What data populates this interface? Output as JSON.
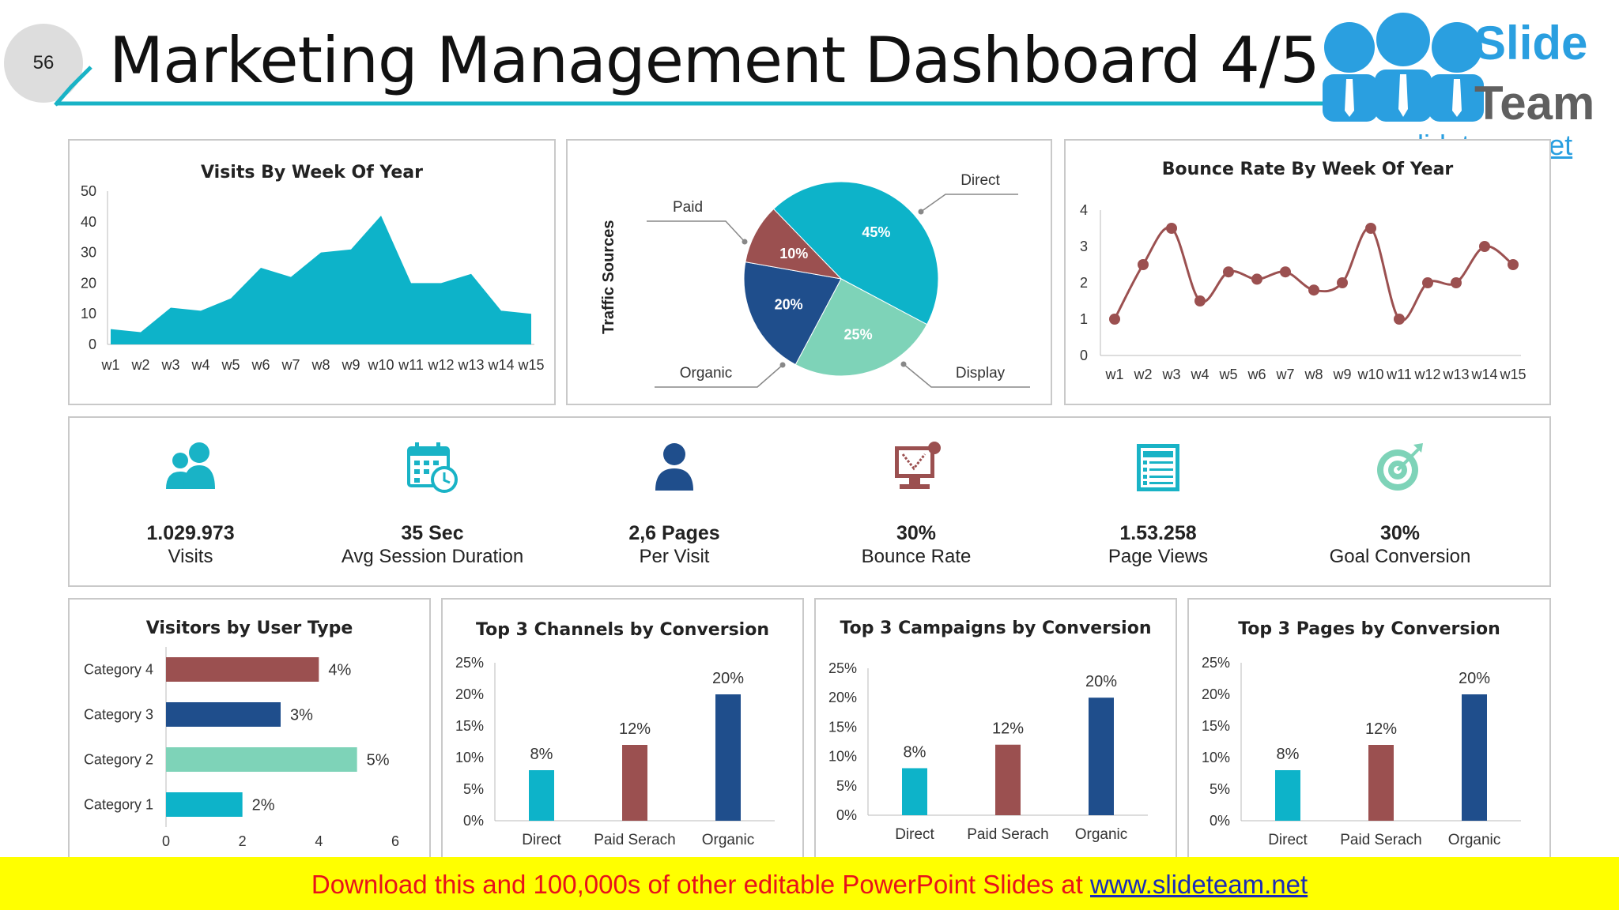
{
  "slide": {
    "number": "56",
    "title": "Marketing Management Dashboard 4/5"
  },
  "logo": {
    "line1": "Slide",
    "line2": "Team",
    "url": "www.slideteam.net"
  },
  "colors": {
    "teal": "#0db3c9",
    "maroon": "#9b5050",
    "navy": "#1f4e8c",
    "mint": "#7ed3b8",
    "accent_line": "#19b3c6"
  },
  "visits_chart": {
    "title": "Visits By Week Of Year",
    "chart_data": {
      "type": "area",
      "categories": [
        "w1",
        "w2",
        "w3",
        "w4",
        "w5",
        "w6",
        "w7",
        "w8",
        "w9",
        "w10",
        "w11",
        "w12",
        "w13",
        "w14",
        "w15"
      ],
      "values": [
        5,
        4,
        12,
        11,
        15,
        25,
        22,
        30,
        31,
        42,
        20,
        20,
        23,
        11,
        10
      ],
      "yticks": [
        "0",
        "10",
        "20",
        "30",
        "40",
        "50"
      ],
      "ylim": [
        0,
        50
      ]
    }
  },
  "traffic_chart": {
    "ylabel": "Traffic Sources",
    "chart_data": {
      "type": "pie",
      "slices": [
        {
          "label": "Direct",
          "value": 45,
          "text": "45%",
          "color": "#0db3c9"
        },
        {
          "label": "Display",
          "value": 25,
          "text": "25%",
          "color": "#7ed3b8"
        },
        {
          "label": "Organic",
          "value": 20,
          "text": "20%",
          "color": "#1f4e8c"
        },
        {
          "label": "Paid",
          "value": 10,
          "text": "10%",
          "color": "#9b5050"
        }
      ]
    }
  },
  "bounce_chart": {
    "title": "Bounce Rate By Week Of Year",
    "chart_data": {
      "type": "line",
      "categories": [
        "w1",
        "w2",
        "w3",
        "w4",
        "w5",
        "w6",
        "w7",
        "w8",
        "w9",
        "w10",
        "w11",
        "w12",
        "w13",
        "w14",
        "w15"
      ],
      "values": [
        1,
        2.5,
        3.5,
        1.5,
        2.3,
        2.1,
        2.3,
        1.8,
        2,
        3.5,
        1,
        2,
        2,
        3,
        2.5
      ],
      "yticks": [
        "0",
        "1",
        "2",
        "3",
        "4"
      ],
      "ylim": [
        0,
        4
      ]
    }
  },
  "kpis": [
    {
      "value": "1.029.973",
      "label": "Visits",
      "icon": "users-icon"
    },
    {
      "value": "35 Sec",
      "label": "Avg Session Duration",
      "icon": "calendar-clock-icon"
    },
    {
      "value": "2,6 Pages",
      "label": "Per Visit",
      "icon": "person-icon"
    },
    {
      "value": "30%",
      "label": "Bounce Rate",
      "icon": "monitor-bounce-icon"
    },
    {
      "value": "1.53.258",
      "label": "Page Views",
      "icon": "page-view-icon"
    },
    {
      "value": "30%",
      "label": "Goal Conversion",
      "icon": "target-icon"
    }
  ],
  "visitors_chart": {
    "title": "Visitors by User Type",
    "chart_data": {
      "type": "bar",
      "orientation": "horizontal",
      "categories": [
        "Category 4",
        "Category 3",
        "Category 2",
        "Category 1"
      ],
      "values": [
        4,
        3,
        5,
        2
      ],
      "labels": [
        "4%",
        "3%",
        "5%",
        "2%"
      ],
      "colors": [
        "#9b5050",
        "#1f4e8c",
        "#7ed3b8",
        "#0db3c9"
      ],
      "xticks": [
        "0",
        "2",
        "4",
        "6"
      ],
      "xlim": [
        0,
        6
      ]
    }
  },
  "channels_chart": {
    "title": "Top 3 Channels by Conversion",
    "chart_data": {
      "type": "bar",
      "categories": [
        "Direct",
        "Paid Serach",
        "Organic"
      ],
      "values": [
        8,
        12,
        20
      ],
      "labels": [
        "8%",
        "12%",
        "20%"
      ],
      "colors": [
        "#0db3c9",
        "#9b5050",
        "#1f4e8c"
      ],
      "yticks": [
        "0%",
        "5%",
        "10%",
        "15%",
        "20%",
        "25%"
      ],
      "ylim": [
        0,
        25
      ]
    }
  },
  "campaigns_chart": {
    "title": "Top 3 Campaigns by Conversion",
    "chart_data": {
      "type": "bar",
      "categories": [
        "Direct",
        "Paid Serach",
        "Organic"
      ],
      "values": [
        8,
        12,
        20
      ],
      "labels": [
        "8%",
        "12%",
        "20%"
      ],
      "colors": [
        "#0db3c9",
        "#9b5050",
        "#1f4e8c"
      ],
      "yticks": [
        "0%",
        "5%",
        "10%",
        "15%",
        "20%",
        "25%"
      ],
      "ylim": [
        0,
        25
      ]
    }
  },
  "pages_chart": {
    "title": "Top 3 Pages by Conversion",
    "chart_data": {
      "type": "bar",
      "categories": [
        "Direct",
        "Paid Serach",
        "Organic"
      ],
      "values": [
        8,
        12,
        20
      ],
      "labels": [
        "8%",
        "12%",
        "20%"
      ],
      "colors": [
        "#0db3c9",
        "#9b5050",
        "#1f4e8c"
      ],
      "yticks": [
        "0%",
        "5%",
        "10%",
        "15%",
        "20%",
        "25%"
      ],
      "ylim": [
        0,
        25
      ]
    }
  },
  "banner": {
    "text": "Download this and 100,000s of other editable PowerPoint Slides at ",
    "url": "www.slideteam.net"
  }
}
